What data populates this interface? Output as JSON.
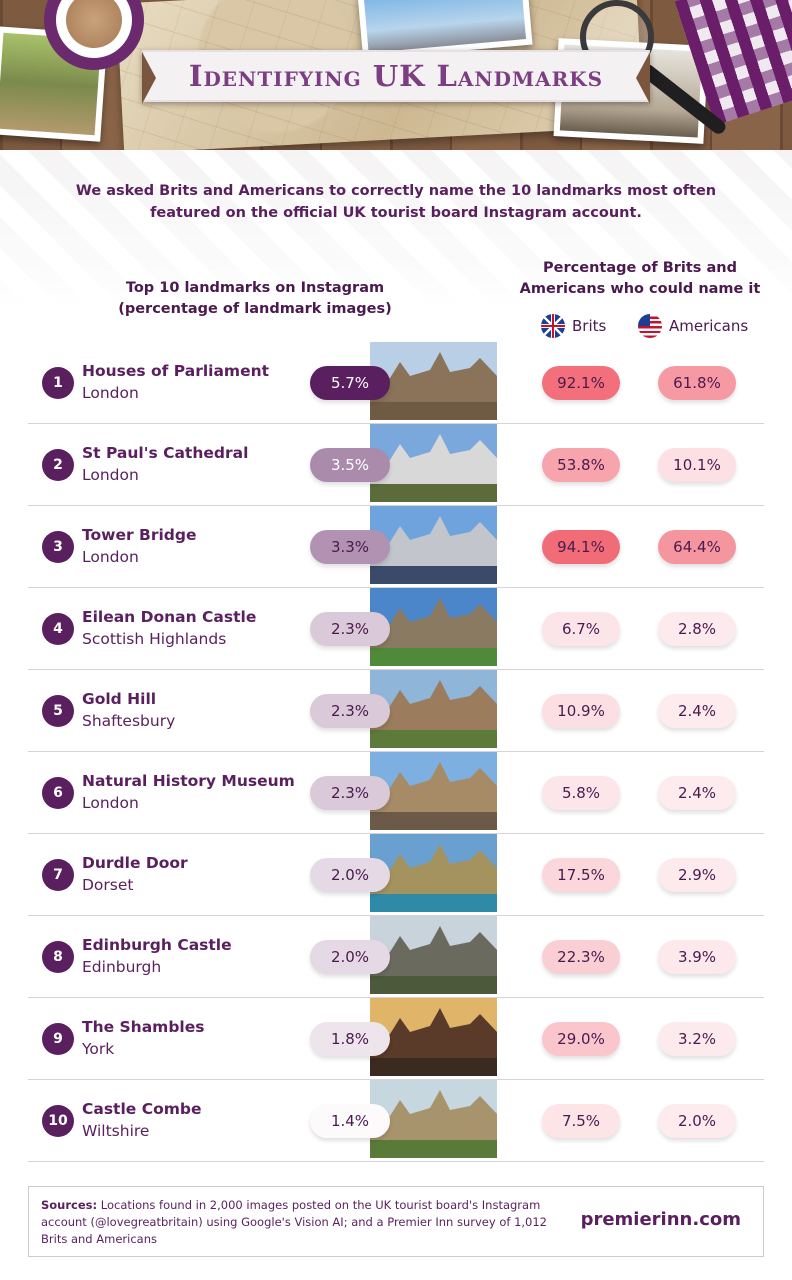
{
  "title": "Identifying UK Landmarks",
  "intro": "We asked Brits and Americans to correctly name the 10 landmarks most often featured on the official UK tourist board Instagram account.",
  "headers": {
    "left": "Top 10 landmarks on Instagram (percentage of landmark images)",
    "right": "Percentage of Brits and Americans who could name it"
  },
  "legend": {
    "brits": "Brits",
    "americans": "Americans"
  },
  "colors": {
    "dark_purple": "#5a1f5e",
    "brits_high": "#f26c78",
    "us_high": "#f7a1a8",
    "low_pink": "#fdeef1"
  },
  "rows": [
    {
      "rank": "1",
      "name": "Houses of Parliament",
      "place": "London",
      "insta": "5.7%",
      "brits": "92.1%",
      "americans": "61.8%",
      "image_icon": "houses-of-parliament-photo"
    },
    {
      "rank": "2",
      "name": "St Paul's Cathedral",
      "place": "London",
      "insta": "3.5%",
      "brits": "53.8%",
      "americans": "10.1%",
      "image_icon": "st-pauls-cathedral-photo"
    },
    {
      "rank": "3",
      "name": "Tower Bridge",
      "place": "London",
      "insta": "3.3%",
      "brits": "94.1%",
      "americans": "64.4%",
      "image_icon": "tower-bridge-photo"
    },
    {
      "rank": "4",
      "name": "Eilean Donan Castle",
      "place": "Scottish Highlands",
      "insta": "2.3%",
      "brits": "6.7%",
      "americans": "2.8%",
      "image_icon": "eilean-donan-castle-photo"
    },
    {
      "rank": "5",
      "name": "Gold Hill",
      "place": "Shaftesbury",
      "insta": "2.3%",
      "brits": "10.9%",
      "americans": "2.4%",
      "image_icon": "gold-hill-photo"
    },
    {
      "rank": "6",
      "name": "Natural History Museum",
      "place": "London",
      "insta": "2.3%",
      "brits": "5.8%",
      "americans": "2.4%",
      "image_icon": "natural-history-museum-photo"
    },
    {
      "rank": "7",
      "name": "Durdle Door",
      "place": "Dorset",
      "insta": "2.0%",
      "brits": "17.5%",
      "americans": "2.9%",
      "image_icon": "durdle-door-photo"
    },
    {
      "rank": "8",
      "name": "Edinburgh Castle",
      "place": "Edinburgh",
      "insta": "2.0%",
      "brits": "22.3%",
      "americans": "3.9%",
      "image_icon": "edinburgh-castle-photo"
    },
    {
      "rank": "9",
      "name": "The Shambles",
      "place": "York",
      "insta": "1.8%",
      "brits": "29.0%",
      "americans": "3.2%",
      "image_icon": "the-shambles-photo"
    },
    {
      "rank": "10",
      "name": "Castle Combe",
      "place": "Wiltshire",
      "insta": "1.4%",
      "brits": "7.5%",
      "americans": "2.0%",
      "image_icon": "castle-combe-photo"
    }
  ],
  "chart_data": {
    "type": "table",
    "categories": [
      "Houses of Parliament",
      "St Paul's Cathedral",
      "Tower Bridge",
      "Eilean Donan Castle",
      "Gold Hill",
      "Natural History Museum",
      "Durdle Door",
      "Edinburgh Castle",
      "The Shambles",
      "Castle Combe"
    ],
    "series": [
      {
        "name": "Top 10 landmarks on Instagram (percentage of landmark images)",
        "values": [
          5.7,
          3.5,
          3.3,
          2.3,
          2.3,
          2.3,
          2.0,
          2.0,
          1.8,
          1.4
        ]
      },
      {
        "name": "Brits",
        "values": [
          92.1,
          53.8,
          94.1,
          6.7,
          10.9,
          5.8,
          17.5,
          22.3,
          29.0,
          7.5
        ]
      },
      {
        "name": "Americans",
        "values": [
          61.8,
          10.1,
          64.4,
          2.8,
          2.4,
          2.4,
          2.9,
          3.9,
          3.2,
          2.0
        ]
      }
    ]
  },
  "sources": {
    "label": "Sources:",
    "text": "Locations found in 2,000 images posted on the UK tourist board's Instagram account (@lovegreatbritain) using Google's Vision AI; and a Premier Inn survey of 1,012 Brits and Americans"
  },
  "brand": "premierinn.com"
}
